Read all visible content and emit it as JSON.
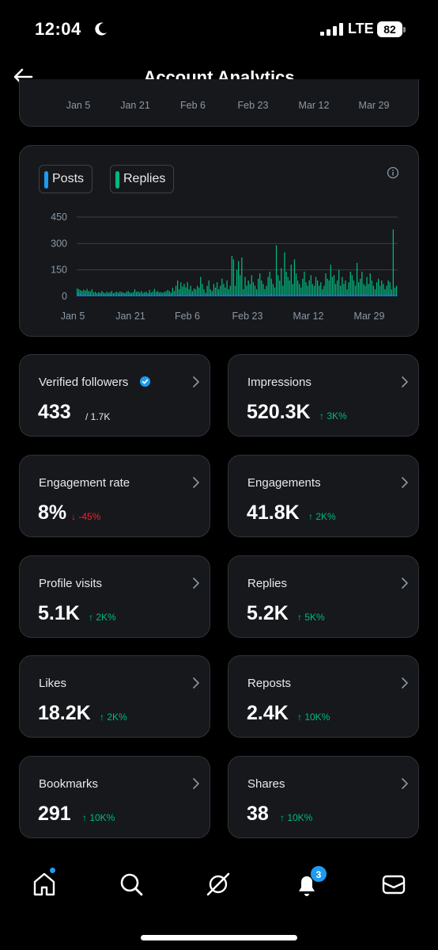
{
  "status_bar": {
    "time": "12:04",
    "network": "LTE",
    "battery": "82"
  },
  "header": {
    "title": "Account Analytics"
  },
  "top_chart": {
    "x_labels": [
      "Jan 5",
      "Jan 21",
      "Feb 6",
      "Feb 23",
      "Mar 12",
      "Mar 29"
    ]
  },
  "chart_data": {
    "type": "bar",
    "legend": [
      {
        "name": "Posts",
        "color": "#1d9bf0"
      },
      {
        "name": "Replies",
        "color": "#00ba7c"
      }
    ],
    "x_labels": [
      "Jan 5",
      "Jan 21",
      "Feb 6",
      "Feb 23",
      "Mar 12",
      "Mar 29"
    ],
    "y_ticks": [
      "450",
      "300",
      "150",
      "0"
    ],
    "ylim": [
      0,
      450
    ],
    "grid": true,
    "series": [
      {
        "name": "Posts",
        "color": "#1d9bf0",
        "values": [
          20,
          18,
          15,
          12,
          10,
          14,
          8,
          12,
          10,
          8,
          9,
          12,
          8,
          10,
          12,
          8,
          9,
          10,
          8,
          12,
          10,
          14,
          12,
          10,
          8,
          12,
          10,
          14,
          12,
          10,
          12,
          8,
          10,
          12,
          14,
          10,
          12,
          10,
          8,
          12,
          10,
          14,
          12,
          10,
          12,
          8,
          10,
          12,
          14,
          10,
          12,
          10,
          8,
          12,
          10,
          14,
          12,
          10,
          12,
          8,
          10,
          12,
          14,
          10,
          12,
          10,
          8,
          12,
          10,
          14,
          12,
          10,
          12,
          8,
          10,
          12,
          14,
          10,
          12,
          10,
          8,
          12,
          10,
          14,
          12,
          10,
          12,
          8,
          10,
          12,
          14,
          10,
          12,
          10,
          8,
          12,
          10,
          14,
          12,
          10,
          12,
          8,
          10,
          12,
          14,
          10,
          12,
          10,
          8,
          12,
          10,
          14,
          12,
          10,
          12,
          8,
          10,
          12,
          14,
          10,
          12,
          10,
          8,
          12,
          10,
          14,
          12,
          10,
          12,
          8,
          10,
          12,
          14,
          10,
          12,
          10,
          8,
          12,
          10,
          14,
          12,
          10,
          12,
          8,
          10,
          12,
          14,
          10,
          12,
          10,
          8,
          12,
          10,
          14,
          12,
          10,
          12,
          8,
          10,
          12,
          14,
          10,
          12,
          10,
          8,
          12,
          10,
          14,
          12,
          10,
          12,
          8,
          10,
          12,
          14,
          10,
          12,
          10,
          8,
          12,
          10,
          14,
          12,
          10,
          12,
          8,
          10,
          12,
          14,
          10,
          12,
          10,
          8,
          12,
          10,
          14,
          12,
          10,
          12,
          8,
          10,
          12,
          14,
          10,
          12,
          10,
          8,
          12
        ]
      },
      {
        "name": "Replies",
        "color": "#00ba7c",
        "values": [
          45,
          40,
          35,
          30,
          38,
          32,
          42,
          30,
          28,
          40,
          22,
          26,
          18,
          24,
          20,
          30,
          22,
          18,
          26,
          20,
          24,
          30,
          18,
          22,
          26,
          20,
          28,
          24,
          22,
          18,
          26,
          30,
          22,
          20,
          24,
          40,
          26,
          28,
          22,
          30,
          20,
          24,
          26,
          18,
          36,
          22,
          28,
          42,
          26,
          30,
          22,
          24,
          20,
          26,
          28,
          36,
          30,
          22,
          48,
          30,
          60,
          90,
          40,
          80,
          55,
          70,
          50,
          80,
          40,
          60,
          30,
          45,
          40,
          60,
          50,
          110,
          70,
          40,
          20,
          60,
          90,
          40,
          30,
          70,
          50,
          80,
          40,
          60,
          100,
          70,
          50,
          90,
          40,
          60,
          230,
          210,
          60,
          150,
          200,
          120,
          220,
          40,
          110,
          60,
          90,
          70,
          120,
          80,
          60,
          40,
          100,
          130,
          90,
          70,
          40,
          60,
          110,
          140,
          100,
          70,
          50,
          290,
          120,
          90,
          160,
          60,
          250,
          140,
          110,
          90,
          180,
          70,
          210,
          130,
          90,
          70,
          50,
          100,
          140,
          80,
          60,
          90,
          120,
          70,
          60,
          110,
          90,
          60,
          80,
          40,
          60,
          130,
          100,
          90,
          180,
          110,
          120,
          70,
          90,
          150,
          60,
          110,
          70,
          90,
          40,
          80,
          140,
          120,
          90,
          60,
          190,
          80,
          100,
          140,
          70,
          60,
          110,
          70,
          130,
          90,
          60,
          40,
          80,
          100,
          60,
          90,
          70,
          40,
          60,
          90,
          80,
          40,
          380,
          50,
          60
        ]
      }
    ]
  },
  "metrics": [
    {
      "label": "Verified followers",
      "value": "433",
      "sub": "/ 1.7K",
      "verified": true
    },
    {
      "label": "Impressions",
      "value": "520.3K",
      "change": "↑ 3K%",
      "direction": "up"
    },
    {
      "label": "Engagement rate",
      "value": "8%",
      "change": "↓ -45%",
      "direction": "down"
    },
    {
      "label": "Engagements",
      "value": "41.8K",
      "change": "↑ 2K%",
      "direction": "up"
    },
    {
      "label": "Profile visits",
      "value": "5.1K",
      "change": "↑ 2K%",
      "direction": "up"
    },
    {
      "label": "Replies",
      "value": "5.2K",
      "change": "↑ 5K%",
      "direction": "up"
    },
    {
      "label": "Likes",
      "value": "18.2K",
      "change": "↑ 2K%",
      "direction": "up"
    },
    {
      "label": "Reposts",
      "value": "2.4K",
      "change": "↑ 10K%",
      "direction": "up"
    },
    {
      "label": "Bookmarks",
      "value": "291",
      "change": "↑ 10K%",
      "direction": "up"
    },
    {
      "label": "Shares",
      "value": "38",
      "change": "↑ 10K%",
      "direction": "up"
    }
  ],
  "bottom_nav": {
    "items": [
      {
        "icon": "home-icon",
        "has_dot": true
      },
      {
        "icon": "search-icon"
      },
      {
        "icon": "grok-icon"
      },
      {
        "icon": "notifications-icon",
        "badge": "3"
      },
      {
        "icon": "messages-icon"
      }
    ]
  }
}
